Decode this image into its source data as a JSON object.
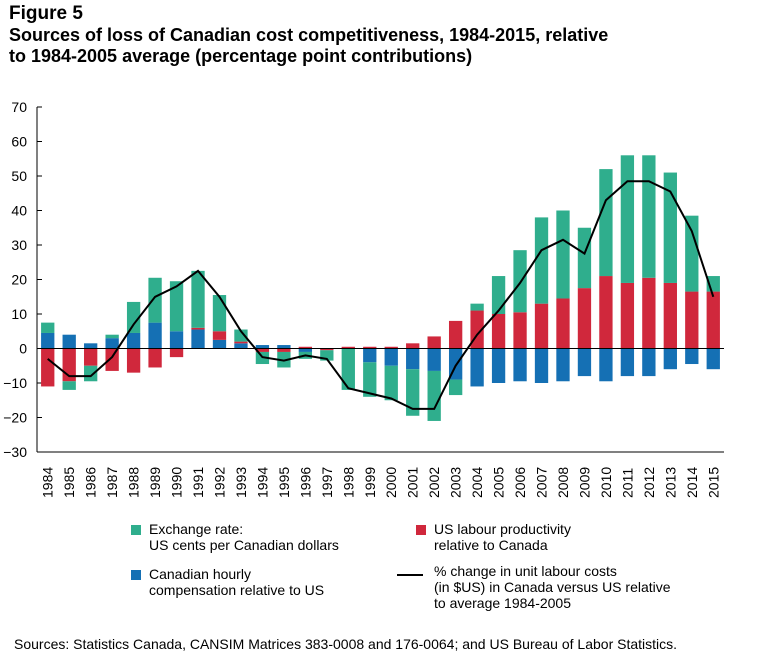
{
  "figure_label": "Figure 5",
  "title_line1": "Sources of loss of Canadian cost competitiveness, 1984-2015, relative",
  "title_line2": "to 1984-2005 average (percentage point contributions)",
  "legend": {
    "exchange_line1": "Exchange rate:",
    "exchange_line2": "US cents per Canadian dollars",
    "productivity_line1": "US labour productivity",
    "productivity_line2": "relative to Canada",
    "compensation_line1": "Canadian hourly",
    "compensation_line2": "compensation relative to US",
    "ulc_line1": "% change in unit labour costs",
    "ulc_line2": "(in $US) in Canada versus US relative",
    "ulc_line3": "to average 1984-2005"
  },
  "source": "Sources: Statistics Canada, CANSIM Matrices 383-0008 and 176-0064; and US Bureau of Labor Statistics.",
  "colors": {
    "exchange": "#2fae8d",
    "productivity": "#d0283c",
    "compensation": "#1570b4",
    "line": "#000000"
  },
  "chart_data": {
    "type": "bar",
    "stacked": true,
    "title": "Sources of loss of Canadian cost competitiveness, 1984-2015, relative to 1984-2005 average (percentage point contributions)",
    "xlabel": "",
    "ylabel": "",
    "ylim": [
      -30,
      70
    ],
    "yticks": [
      -30,
      -20,
      -10,
      0,
      10,
      20,
      30,
      40,
      50,
      60,
      70
    ],
    "ytick_labels": [
      "−30",
      "−20",
      "−10",
      "0",
      "10",
      "20",
      "30",
      "40",
      "50",
      "60",
      "70"
    ],
    "categories": [
      "1984",
      "1985",
      "1986",
      "1987",
      "1988",
      "1989",
      "1990",
      "1991",
      "1992",
      "1993",
      "1994",
      "1995",
      "1996",
      "1997",
      "1998",
      "1999",
      "2000",
      "2001",
      "2002",
      "2003",
      "2004",
      "2005",
      "2006",
      "2007",
      "2008",
      "2009",
      "2010",
      "2011",
      "2012",
      "2013",
      "2014",
      "2015"
    ],
    "series": [
      {
        "name": "Canadian hourly compensation relative to US",
        "key": "compensation",
        "values": [
          4.5,
          4,
          1.5,
          3,
          4.5,
          7.5,
          5,
          5.5,
          2.5,
          1.5,
          1,
          1,
          -1,
          0,
          0,
          -4,
          -5,
          -6,
          -6.5,
          -9,
          -11,
          -10,
          -9.5,
          -10,
          -9.5,
          -8,
          -9.5,
          -8,
          -8,
          -6,
          -4.5,
          -6
        ]
      },
      {
        "name": "US labour productivity relative to Canada",
        "key": "productivity",
        "values": [
          -11,
          -9.5,
          -5,
          -6.5,
          -7,
          -5.5,
          -2.5,
          0.5,
          2.5,
          0.5,
          -1,
          -1,
          0.5,
          -0.5,
          0.5,
          0.5,
          0.5,
          1.5,
          3.5,
          8,
          11,
          10,
          10.5,
          13,
          14.5,
          17.5,
          21,
          19,
          20.5,
          19,
          16.5,
          16.5
        ]
      },
      {
        "name": "Exchange rate: US cents per Canadian dollars",
        "key": "exchange",
        "values": [
          3,
          -2.5,
          -4.5,
          1,
          9,
          13,
          14.5,
          16.5,
          10.5,
          3.5,
          -3.5,
          -4.5,
          -2,
          -3,
          -12,
          -10,
          -10,
          -13.5,
          -14.5,
          -4.5,
          2,
          11,
          18,
          25,
          25.5,
          17.5,
          31,
          37,
          35.5,
          32,
          22,
          4.5
        ]
      }
    ],
    "line": {
      "name": "% change in unit labour costs (in $US) in Canada versus US relative to average 1984-2005",
      "values": [
        -3,
        -8,
        -8,
        -2.5,
        7,
        15,
        18,
        22.5,
        15,
        5,
        -2.5,
        -3.5,
        -2,
        -3,
        -11.5,
        -13,
        -14.5,
        -17.5,
        -17.5,
        -5,
        4,
        11,
        19,
        28.5,
        31.5,
        27.5,
        43,
        48.5,
        48.5,
        45.5,
        34,
        15
      ]
    }
  }
}
